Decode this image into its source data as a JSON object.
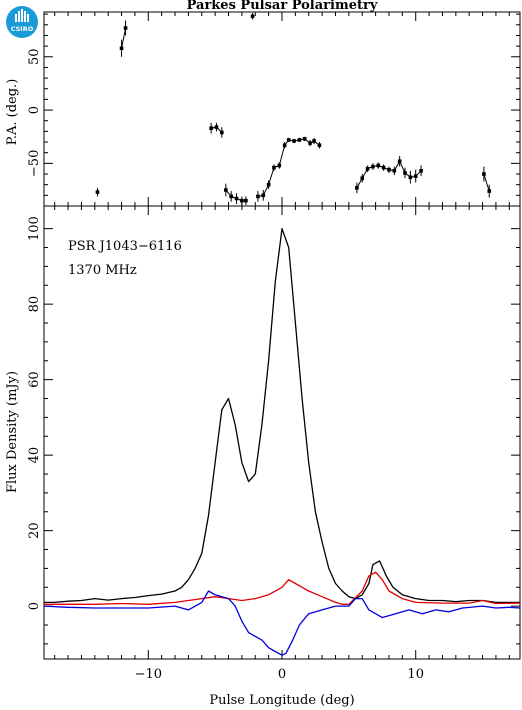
{
  "logo": {
    "text": "CSIRO",
    "color": "#1a9ad6"
  },
  "chart_data": [
    {
      "type": "scatter",
      "title": "Parkes Pulsar Polarimetry",
      "xlabel": "",
      "ylabel": "P.A. (deg.)",
      "xlim": [
        -17.8,
        17.8
      ],
      "ylim": [
        -90,
        92
      ],
      "yticks": [
        -50,
        0,
        50
      ],
      "points": [
        {
          "x": -13.8,
          "y": -77,
          "err": 4
        },
        {
          "x": -12.0,
          "y": 58,
          "err": 8
        },
        {
          "x": -11.7,
          "y": 77,
          "err": 7
        },
        {
          "x": -4.2,
          "y": -75,
          "err": 6
        },
        {
          "x": -3.8,
          "y": -81,
          "err": 5
        },
        {
          "x": -3.4,
          "y": -83,
          "err": 5
        },
        {
          "x": -3.0,
          "y": -85,
          "err": 4
        },
        {
          "x": -2.7,
          "y": -85,
          "err": 4
        },
        {
          "x": -2.2,
          "y": 88,
          "err": 3
        },
        {
          "x": -1.8,
          "y": -81,
          "err": 5
        },
        {
          "x": -1.4,
          "y": -80,
          "err": 5
        },
        {
          "x": -1.0,
          "y": -70,
          "err": 4
        },
        {
          "x": -0.6,
          "y": -54,
          "err": 3
        },
        {
          "x": -0.2,
          "y": -52,
          "err": 3
        },
        {
          "x": 0.2,
          "y": -33,
          "err": 3
        },
        {
          "x": 0.5,
          "y": -28,
          "err": 2
        },
        {
          "x": 0.9,
          "y": -29,
          "err": 2
        },
        {
          "x": 1.3,
          "y": -28,
          "err": 2
        },
        {
          "x": 1.7,
          "y": -27,
          "err": 2
        },
        {
          "x": 2.1,
          "y": -31,
          "err": 3
        },
        {
          "x": 2.4,
          "y": -29,
          "err": 3
        },
        {
          "x": 2.8,
          "y": -33,
          "err": 3
        },
        {
          "x": -5.3,
          "y": -17,
          "err": 5
        },
        {
          "x": -4.9,
          "y": -16,
          "err": 4
        },
        {
          "x": -4.5,
          "y": -21,
          "err": 5
        },
        {
          "x": 5.6,
          "y": -73,
          "err": 5
        },
        {
          "x": 6.0,
          "y": -64,
          "err": 4
        },
        {
          "x": 6.4,
          "y": -55,
          "err": 3
        },
        {
          "x": 6.8,
          "y": -53,
          "err": 3
        },
        {
          "x": 7.2,
          "y": -52,
          "err": 3
        },
        {
          "x": 7.6,
          "y": -54,
          "err": 3
        },
        {
          "x": 8.0,
          "y": -56,
          "err": 3
        },
        {
          "x": 8.4,
          "y": -57,
          "err": 4
        },
        {
          "x": 8.8,
          "y": -48,
          "err": 5
        },
        {
          "x": 9.2,
          "y": -59,
          "err": 5
        },
        {
          "x": 9.6,
          "y": -63,
          "err": 6
        },
        {
          "x": 10.0,
          "y": -62,
          "err": 6
        },
        {
          "x": 10.4,
          "y": -57,
          "err": 5
        },
        {
          "x": 15.1,
          "y": -60,
          "err": 7
        },
        {
          "x": 15.5,
          "y": -76,
          "err": 6
        }
      ],
      "line_segments": [
        [
          [
            -4.2,
            -75
          ],
          [
            -3.8,
            -81
          ],
          [
            -3.4,
            -83
          ],
          [
            -3.0,
            -85
          ],
          [
            -2.7,
            -85
          ]
        ],
        [
          [
            -1.8,
            -81
          ],
          [
            -1.4,
            -80
          ],
          [
            -1.0,
            -70
          ],
          [
            -0.6,
            -54
          ],
          [
            -0.2,
            -52
          ],
          [
            0.2,
            -33
          ],
          [
            0.5,
            -28
          ],
          [
            0.9,
            -29
          ],
          [
            1.3,
            -28
          ],
          [
            1.7,
            -27
          ],
          [
            2.1,
            -31
          ],
          [
            2.4,
            -29
          ],
          [
            2.8,
            -33
          ]
        ],
        [
          [
            -5.3,
            -17
          ],
          [
            -4.9,
            -16
          ],
          [
            -4.5,
            -21
          ]
        ],
        [
          [
            5.6,
            -73
          ],
          [
            6.0,
            -64
          ],
          [
            6.4,
            -55
          ],
          [
            6.8,
            -53
          ],
          [
            7.2,
            -52
          ],
          [
            7.6,
            -54
          ],
          [
            8.0,
            -56
          ],
          [
            8.4,
            -57
          ],
          [
            8.8,
            -48
          ],
          [
            9.2,
            -59
          ],
          [
            9.6,
            -63
          ],
          [
            10.0,
            -62
          ],
          [
            10.4,
            -57
          ]
        ],
        [
          [
            -12.0,
            58
          ],
          [
            -11.7,
            77
          ]
        ],
        [
          [
            15.1,
            -60
          ],
          [
            15.5,
            -76
          ]
        ]
      ]
    },
    {
      "type": "line",
      "title": "",
      "xlabel": "Pulse Longitude (deg)",
      "ylabel": "Flux Density (mJy)",
      "xlim": [
        -17.8,
        17.8
      ],
      "ylim": [
        -14,
        106
      ],
      "xticks": [
        -10,
        0,
        10
      ],
      "yticks": [
        0,
        20,
        40,
        60,
        80,
        100
      ],
      "annotations": [
        "PSR J1043−6116",
        "1370 MHz"
      ],
      "series": [
        {
          "color": "#000000",
          "points": [
            [
              -17.8,
              1
            ],
            [
              -17,
              1
            ],
            [
              -16,
              1.3
            ],
            [
              -15,
              1.5
            ],
            [
              -14,
              2
            ],
            [
              -13,
              1.6
            ],
            [
              -12,
              2
            ],
            [
              -11,
              2.3
            ],
            [
              -10,
              2.8
            ],
            [
              -9,
              3.2
            ],
            [
              -8,
              4
            ],
            [
              -7.5,
              5
            ],
            [
              -7,
              7
            ],
            [
              -6.5,
              10
            ],
            [
              -6,
              14
            ],
            [
              -5.5,
              24
            ],
            [
              -5,
              38
            ],
            [
              -4.5,
              52
            ],
            [
              -4.0,
              55
            ],
            [
              -3.5,
              48
            ],
            [
              -3.0,
              38
            ],
            [
              -2.5,
              33
            ],
            [
              -2.0,
              35
            ],
            [
              -1.5,
              48
            ],
            [
              -1.0,
              65
            ],
            [
              -0.5,
              86
            ],
            [
              0,
              100
            ],
            [
              0.5,
              95
            ],
            [
              1.0,
              75
            ],
            [
              1.5,
              55
            ],
            [
              2.0,
              38
            ],
            [
              2.5,
              25
            ],
            [
              3.0,
              17
            ],
            [
              3.5,
              10
            ],
            [
              4.0,
              6
            ],
            [
              4.5,
              4
            ],
            [
              5.0,
              2.5
            ],
            [
              5.5,
              2
            ],
            [
              6.0,
              3
            ],
            [
              6.5,
              6
            ],
            [
              6.8,
              11
            ],
            [
              7.3,
              12
            ],
            [
              7.8,
              8
            ],
            [
              8.3,
              5
            ],
            [
              9,
              3
            ],
            [
              10,
              2
            ],
            [
              11,
              1.5
            ],
            [
              12,
              1.5
            ],
            [
              13,
              1.2
            ],
            [
              14,
              1.5
            ],
            [
              15,
              1.5
            ],
            [
              16,
              1
            ],
            [
              17,
              1
            ],
            [
              17.8,
              1
            ]
          ]
        },
        {
          "color": "#e00000",
          "points": [
            [
              -17.8,
              0.5
            ],
            [
              -16,
              0.5
            ],
            [
              -14,
              0.5
            ],
            [
              -12,
              0.7
            ],
            [
              -10,
              0.5
            ],
            [
              -8,
              1
            ],
            [
              -7,
              1.5
            ],
            [
              -6,
              2
            ],
            [
              -5,
              2.5
            ],
            [
              -4,
              2
            ],
            [
              -3,
              1.5
            ],
            [
              -2,
              2
            ],
            [
              -1,
              3
            ],
            [
              0,
              5
            ],
            [
              0.5,
              7
            ],
            [
              1.0,
              6
            ],
            [
              1.5,
              5
            ],
            [
              2,
              4
            ],
            [
              3,
              2.5
            ],
            [
              4,
              1
            ],
            [
              4.5,
              0.5
            ],
            [
              5,
              0.5
            ],
            [
              6,
              4
            ],
            [
              6.5,
              8
            ],
            [
              7,
              9
            ],
            [
              7.5,
              7
            ],
            [
              8,
              4
            ],
            [
              9,
              2
            ],
            [
              10,
              1
            ],
            [
              12,
              0.8
            ],
            [
              14,
              0.8
            ],
            [
              15,
              1.5
            ],
            [
              16,
              0.7
            ],
            [
              17.8,
              0.8
            ]
          ]
        },
        {
          "color": "#0000e0",
          "points": [
            [
              -17.8,
              0
            ],
            [
              -16,
              -0.3
            ],
            [
              -14,
              -0.5
            ],
            [
              -12,
              -0.5
            ],
            [
              -10,
              -0.5
            ],
            [
              -8,
              0
            ],
            [
              -7,
              -1
            ],
            [
              -6,
              1
            ],
            [
              -5.5,
              4
            ],
            [
              -5,
              3
            ],
            [
              -4,
              2
            ],
            [
              -3.5,
              0
            ],
            [
              -3,
              -4
            ],
            [
              -2.5,
              -7
            ],
            [
              -2,
              -8
            ],
            [
              -1.5,
              -9
            ],
            [
              -1,
              -11
            ],
            [
              -0.5,
              -12
            ],
            [
              0,
              -13
            ],
            [
              0.3,
              -12.5
            ],
            [
              0.8,
              -9
            ],
            [
              1.3,
              -5
            ],
            [
              2,
              -2
            ],
            [
              3,
              -1
            ],
            [
              4,
              0
            ],
            [
              5,
              0
            ],
            [
              5.5,
              2
            ],
            [
              6,
              2
            ],
            [
              6.5,
              -1
            ],
            [
              7,
              -2
            ],
            [
              7.5,
              -3
            ],
            [
              8.5,
              -2
            ],
            [
              9.5,
              -1
            ],
            [
              10.5,
              -2
            ],
            [
              11.5,
              -1
            ],
            [
              12.5,
              -1.5
            ],
            [
              13.5,
              -0.5
            ],
            [
              15,
              0
            ],
            [
              16,
              -0.5
            ],
            [
              17,
              -0.3
            ],
            [
              17.8,
              -0.5
            ]
          ]
        }
      ]
    }
  ]
}
